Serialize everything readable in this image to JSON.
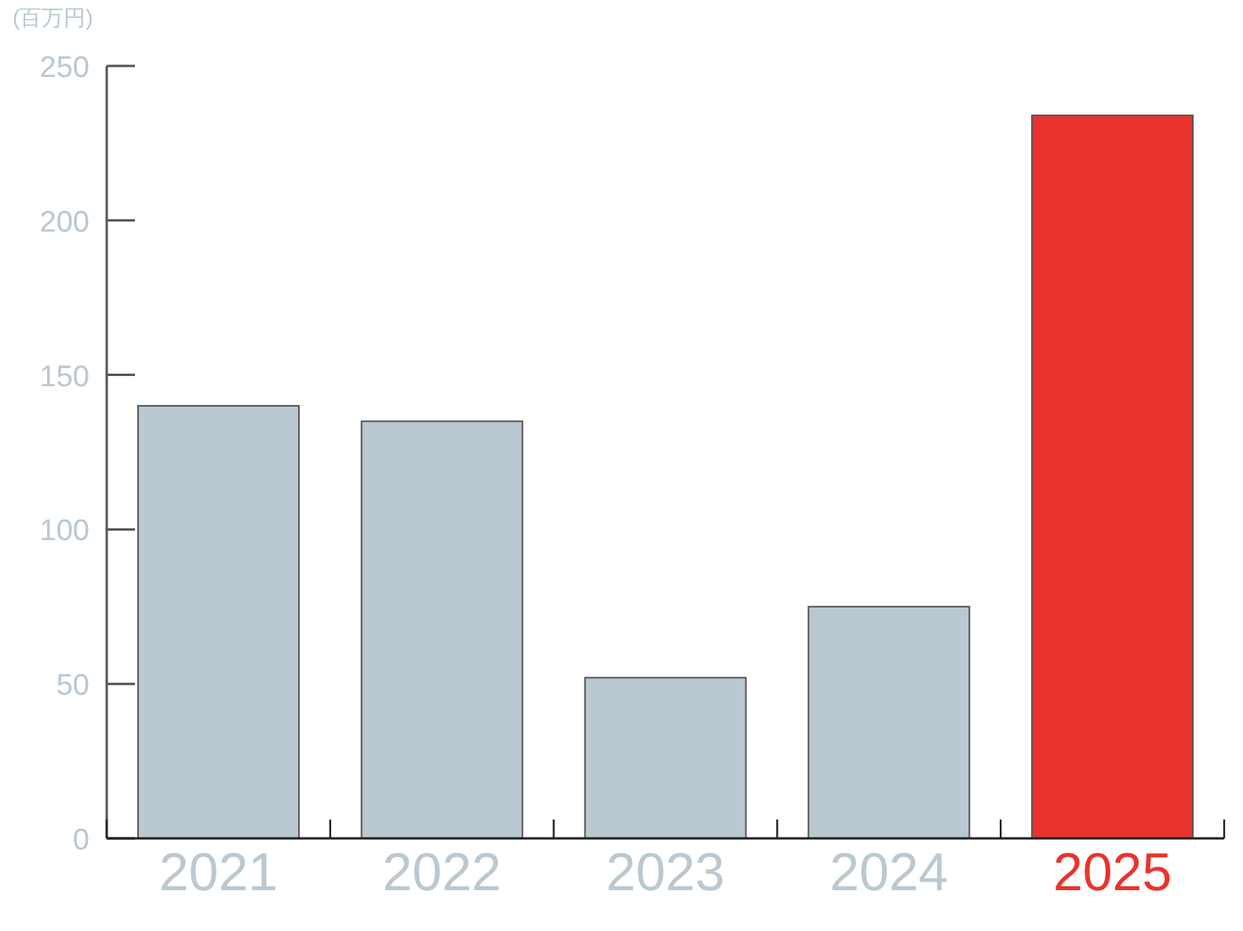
{
  "chart_data": {
    "type": "bar",
    "ylabel": "(百万円)",
    "categories": [
      "2021",
      "2022",
      "2023",
      "2024",
      "2025"
    ],
    "values": [
      140,
      135,
      52,
      75,
      234
    ],
    "colors": [
      "#bac8d1",
      "#bac8d1",
      "#bac8d1",
      "#bac8d1",
      "#ea332e"
    ],
    "ylim": [
      0,
      250
    ],
    "yticks": [
      0,
      50,
      100,
      150,
      200,
      250
    ]
  }
}
